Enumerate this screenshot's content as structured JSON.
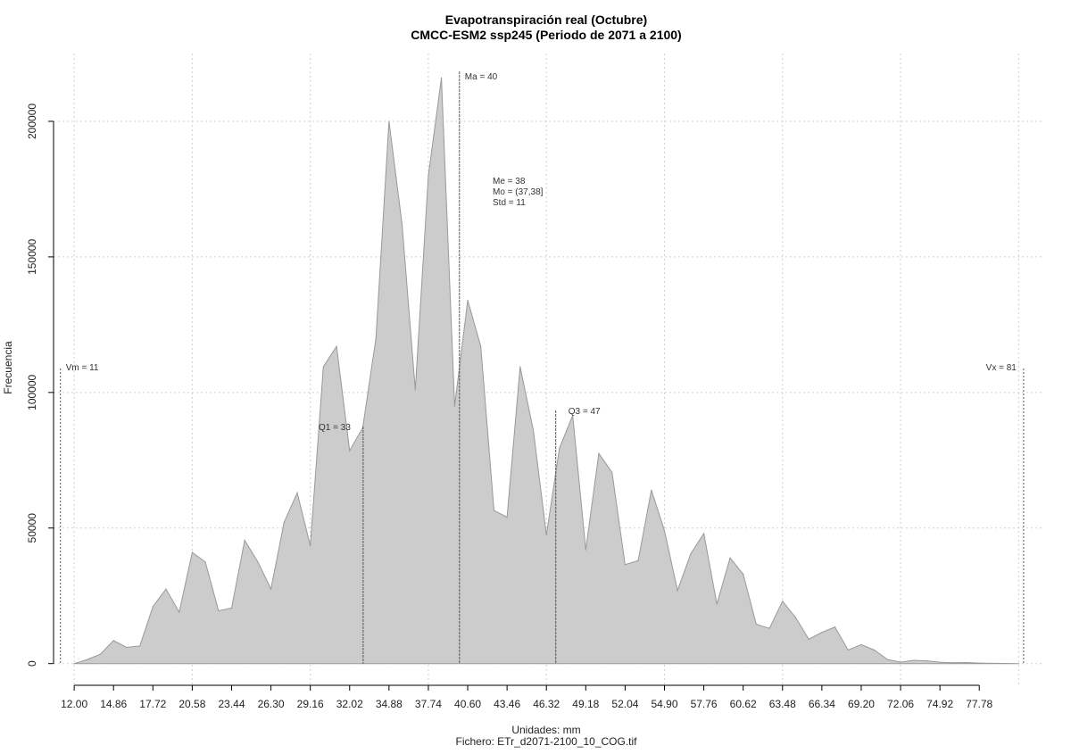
{
  "chart_data": {
    "type": "area",
    "title": "Evapotranspiración real (Octubre)",
    "subtitle": "CMCC-ESM2 ssp245 (Periodo de 2071 a 2100)",
    "xlabel": "Unidades: mm",
    "ylabel": "Frecuencia",
    "footer": "Fichero: ETr_d2071-2100_10_COG.tif",
    "grid": true,
    "fill_color": "#cccccc",
    "line_color": "#999999",
    "xlim": [
      10.5,
      82.5
    ],
    "ylim": [
      -8000,
      225000
    ],
    "x_tick_labels": [
      "12.00",
      "14.86",
      "17.72",
      "20.58",
      "23.44",
      "26.30",
      "29.16",
      "32.02",
      "34.88",
      "37.74",
      "40.60",
      "43.46",
      "46.32",
      "49.18",
      "52.04",
      "54.90",
      "57.76",
      "60.62",
      "63.48",
      "66.34",
      "69.20",
      "72.06",
      "74.92",
      "77.78"
    ],
    "x_tick_values": [
      12.0,
      14.86,
      17.72,
      20.58,
      23.44,
      26.3,
      29.16,
      32.02,
      34.88,
      37.74,
      40.6,
      43.46,
      46.32,
      49.18,
      52.04,
      54.9,
      57.76,
      60.62,
      63.48,
      66.34,
      69.2,
      72.06,
      74.92,
      77.78
    ],
    "y_ticks": [
      0,
      50000,
      100000,
      150000,
      200000
    ],
    "y_tick_labels": [
      "0",
      "50000",
      "100000",
      "150000",
      "200000"
    ],
    "x_grid": [
      12.0,
      20.58,
      29.16,
      37.74,
      46.32,
      54.9,
      63.48,
      72.06,
      80.64
    ],
    "x": [
      12.0,
      12.95,
      13.91,
      14.86,
      15.81,
      16.77,
      17.72,
      18.67,
      19.63,
      20.58,
      21.53,
      22.49,
      23.44,
      24.39,
      25.35,
      26.3,
      27.25,
      28.21,
      29.16,
      30.11,
      31.07,
      32.02,
      32.97,
      33.93,
      34.88,
      35.83,
      36.79,
      37.74,
      38.69,
      39.65,
      40.6,
      41.55,
      42.51,
      43.46,
      44.41,
      45.37,
      46.32,
      47.27,
      48.23,
      49.18,
      50.13,
      51.09,
      52.04,
      52.99,
      53.95,
      54.9,
      55.85,
      56.81,
      57.76,
      58.71,
      59.67,
      60.62,
      61.57,
      62.53,
      63.48,
      64.43,
      65.39,
      66.34,
      67.29,
      68.25,
      69.2,
      70.15,
      71.11,
      72.06,
      73.01,
      73.97,
      74.92,
      75.87,
      76.83,
      77.78,
      78.73,
      79.69,
      80.64
    ],
    "values": [
      0,
      1500,
      3500,
      8500,
      6000,
      6500,
      21000,
      27500,
      19000,
      41000,
      37500,
      19500,
      20500,
      45500,
      37500,
      27500,
      52000,
      63000,
      43500,
      109500,
      117000,
      78500,
      87000,
      120000,
      200000,
      162000,
      101000,
      180000,
      216000,
      95000,
      134000,
      117000,
      56500,
      54000,
      109500,
      86000,
      47500,
      79500,
      91500,
      42000,
      77500,
      70500,
      36500,
      38000,
      64000,
      49000,
      27000,
      40500,
      48000,
      22000,
      39000,
      33000,
      14500,
      13000,
      23000,
      17000,
      9000,
      11500,
      13500,
      5000,
      7000,
      5000,
      1500,
      500,
      1200,
      1000,
      500,
      300,
      400,
      200,
      100,
      50,
      0
    ],
    "vlines": [
      {
        "x": 11,
        "label": "Vm = 11"
      },
      {
        "x": 33,
        "label": "Q1 = 33"
      },
      {
        "x": 40,
        "label": "Ma = 40"
      },
      {
        "x": 47,
        "label": "Q3 = 47"
      },
      {
        "x": 81,
        "label": "Vx = 81"
      }
    ],
    "stats_text": [
      "Me = 38",
      "Mo = (37,38]",
      "Std = 11"
    ]
  }
}
